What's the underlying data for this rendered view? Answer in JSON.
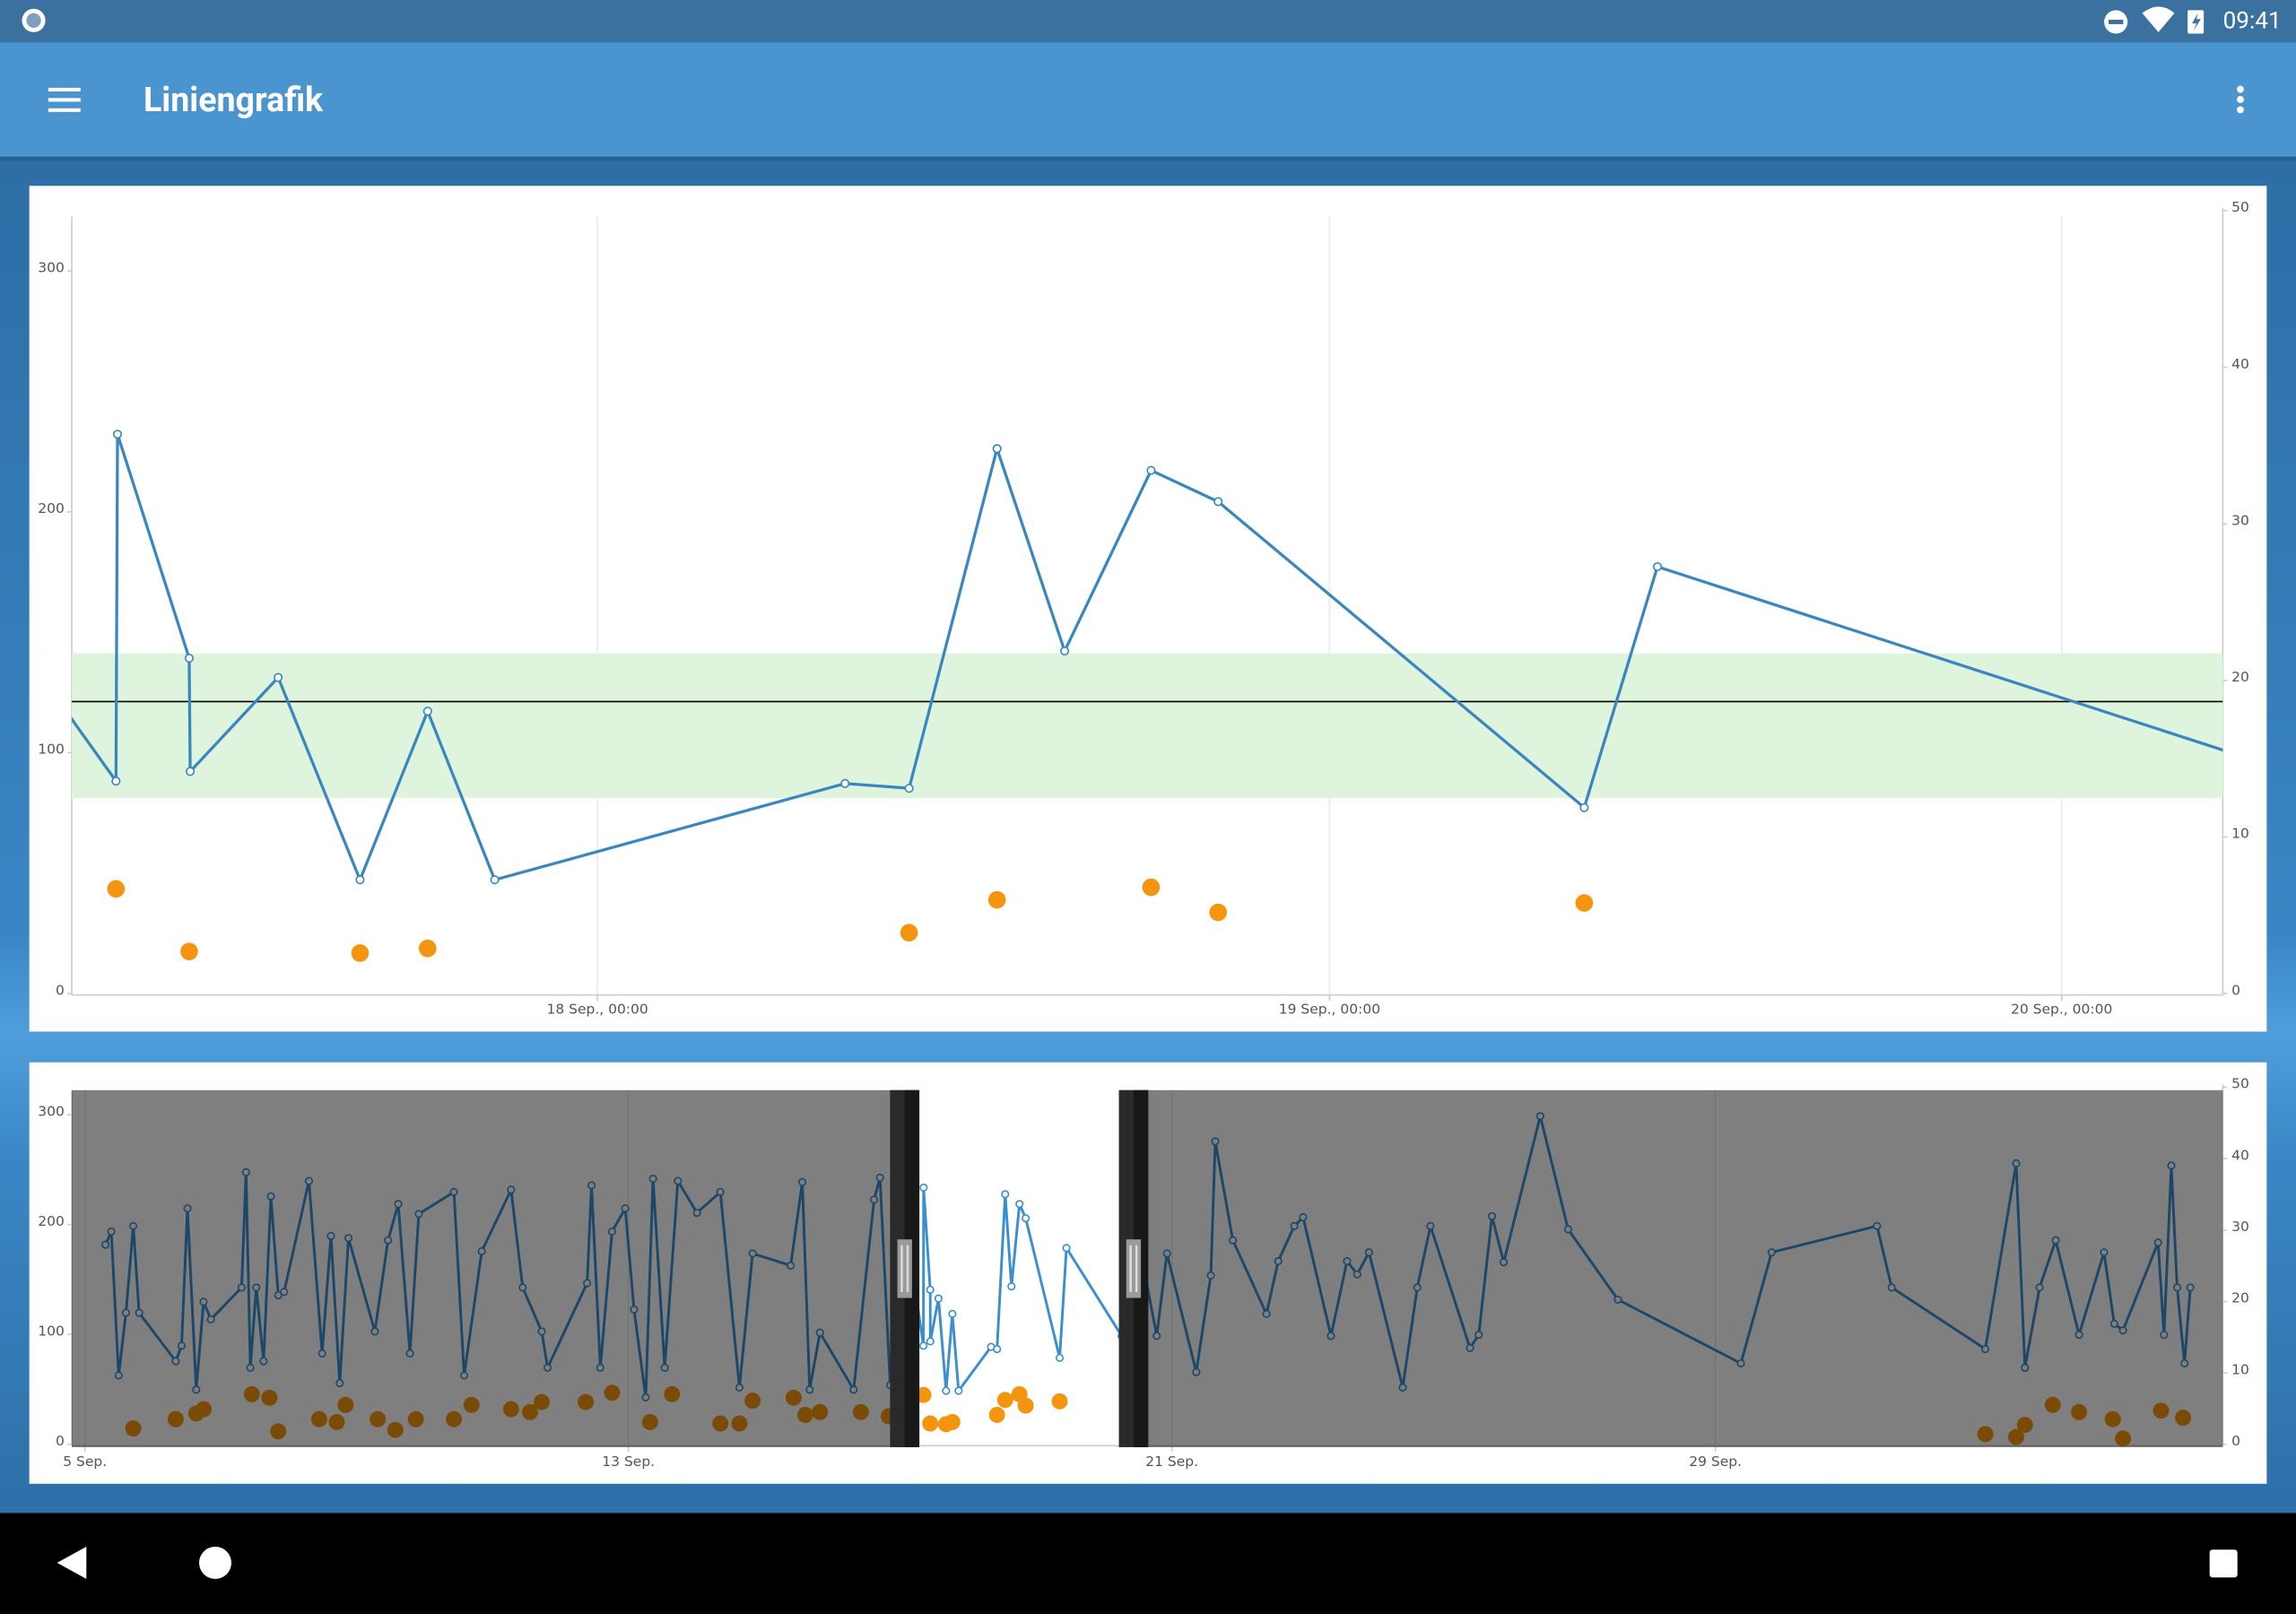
{
  "status_bar": {
    "time": "09:41"
  },
  "app_bar": {
    "title": "Liniengrafik"
  },
  "chart_data": [
    {
      "type": "line",
      "xlim": [
        "17 Sep., 06:46",
        "20 Sep., 05:17"
      ],
      "xticks": [
        "18 Sep., 00:00",
        "19 Sep., 00:00",
        "20 Sep., 00:00"
      ],
      "ylim": [
        0,
        325
      ],
      "yticks": [
        0,
        100,
        200,
        300
      ],
      "y2lim": [
        0,
        50
      ],
      "y2ticks": [
        0,
        10,
        20,
        30,
        40,
        50
      ],
      "grid": "x",
      "band": [
        80,
        140
      ],
      "band_color": "#dff4dc",
      "reference_line": 120,
      "series": [
        {
          "type": "line",
          "color": "#3a87c0",
          "x": [
            "17 Sep., 00:05",
            "17 Sep., 08:13",
            "17 Sep., 08:16",
            "17 Sep., 10:37",
            "17 Sep., 10:39",
            "17 Sep., 13:32",
            "17 Sep., 16:13",
            "17 Sep., 18:26",
            "17 Sep., 20:38",
            "18 Sep., 08:07",
            "18 Sep., 10:13",
            "18 Sep., 13:06",
            "18 Sep., 15:19",
            "18 Sep., 18:09",
            "18 Sep., 20:21",
            "19 Sep., 08:21",
            "19 Sep., 10:45",
            "20 Sep., 06:14"
          ],
          "values": [
            231,
            87,
            231,
            138,
            91,
            130,
            46,
            116,
            46,
            86,
            84,
            225,
            141,
            216,
            203,
            76,
            176,
            96
          ]
        },
        {
          "type": "scatter",
          "axis": "y2",
          "color": "#f5940f",
          "x": [
            "17 Sep., 08:13",
            "17 Sep., 10:37",
            "17 Sep., 16:13",
            "17 Sep., 18:26",
            "18 Sep., 10:13",
            "18 Sep., 13:06",
            "18 Sep., 18:09",
            "18 Sep., 20:21",
            "19 Sep., 08:21"
          ],
          "values": [
            6.5,
            2.5,
            2.4,
            2.7,
            3.7,
            5.8,
            6.6,
            5.0,
            5.6
          ]
        }
      ]
    },
    {
      "type": "navigator",
      "xlim": [
        "4 Sep., 19:20",
        "6 Oct., 11:15"
      ],
      "xticks": [
        "5 Sep.",
        "13 Sep.",
        "21 Sep.",
        "29 Sep."
      ],
      "ylim": [
        0,
        325
      ],
      "yticks": [
        0,
        100,
        200,
        300
      ],
      "y2lim": [
        0,
        50
      ],
      "y2ticks": [
        0,
        10,
        20,
        30,
        40,
        50
      ],
      "grid": "x",
      "series": [
        {
          "type": "line",
          "color": "#3a8fd0",
          "x": [
            "5 Sep., 07:15",
            "5 Sep., 09:19",
            "5 Sep., 11:54",
            "5 Sep., 14:29",
            "5 Sep., 17:04",
            "5 Sep., 19:08",
            "6 Sep., 08:04",
            "6 Sep., 10:08",
            "6 Sep., 12:13",
            "6 Sep., 15:19",
            "6 Sep., 17:54",
            "6 Sep., 20:29",
            "7 Sep., 07:21",
            "7 Sep., 08:54",
            "7 Sep., 10:26",
            "7 Sep., 12:31",
            "7 Sep., 15:06",
            "7 Sep., 17:41",
            "7 Sep., 20:17",
            "7 Sep., 22:21",
            "8 Sep., 07:08",
            "8 Sep., 11:47",
            "8 Sep., 14:54",
            "8 Sep., 18:00",
            "8 Sep., 21:06",
            "9 Sep., 06:25",
            "9 Sep., 11:04",
            "9 Sep., 14:41",
            "9 Sep., 18:49",
            "9 Sep., 21:56",
            "10 Sep., 10:21",
            "10 Sep., 13:58",
            "10 Sep., 20:11",
            "11 Sep., 06:32",
            "11 Sep., 10:39",
            "11 Sep., 17:22",
            "11 Sep., 19:26",
            "12 Sep., 09:24",
            "12 Sep., 10:58",
            "12 Sep., 14:04",
            "12 Sep., 18:13",
            "12 Sep., 22:52",
            "13 Sep., 01:58",
            "13 Sep., 06:06",
            "13 Sep., 08:41",
            "13 Sep., 12:49",
            "13 Sep., 17:28",
            "14 Sep., 00:13",
            "14 Sep., 08:28",
            "14 Sep., 15:13",
            "14 Sep., 19:52",
            "15 Sep., 09:19",
            "15 Sep., 13:26",
            "15 Sep., 16:02",
            "15 Sep., 19:39",
            "16 Sep., 07:34",
            "16 Sep., 14:47",
            "16 Sep., 16:52",
            "16 Sep., 20:28",
            "17 Sep., 00:05",
            "17 Sep., 08:13",
            "17 Sep., 08:16",
            "17 Sep., 10:37",
            "17 Sep., 10:39",
            "17 Sep., 13:32",
            "17 Sep., 16:13",
            "17 Sep., 18:26",
            "17 Sep., 20:38",
            "18 Sep., 08:07",
            "18 Sep., 10:13",
            "18 Sep., 13:06",
            "18 Sep., 15:19",
            "18 Sep., 18:09",
            "18 Sep., 20:21",
            "19 Sep., 08:21",
            "19 Sep., 10:45",
            "20 Sep., 06:14",
            "20 Sep., 12:56",
            "20 Sep., 18:38",
            "20 Sep., 22:15",
            "21 Sep., 08:36",
            "21 Sep., 13:45",
            "21 Sep., 15:19",
            "21 Sep., 21:32",
            "22 Sep., 09:24",
            "22 Sep., 13:33",
            "22 Sep., 19:14",
            "22 Sep., 22:21",
            "23 Sep., 08:11",
            "23 Sep., 13:52",
            "23 Sep., 17:28",
            "23 Sep., 21:37",
            "24 Sep., 09:32",
            "24 Sep., 14:41",
            "24 Sep., 19:20",
            "25 Sep., 09:19",
            "25 Sep., 12:24",
            "25 Sep., 17:04",
            "25 Sep., 21:13",
            "26 Sep., 10:08",
            "26 Sep., 19:58",
            "27 Sep., 13:33",
            "29 Sep., 09:00",
            "29 Sep., 19:52",
            "1 Oct., 09:06",
            "1 Oct., 14:17",
            "2 Oct., 23:22",
            "3 Oct., 10:15",
            "3 Oct., 13:21",
            "3 Oct., 18:32",
            "4 Oct., 00:13",
            "4 Oct., 08:28",
            "4 Oct., 17:17",
            "4 Oct., 20:54",
            "5 Oct., 00:00",
            "5 Oct., 12:24",
            "5 Oct., 14:29",
            "5 Oct., 17:04",
            "5 Oct., 19:08",
            "5 Oct., 21:43",
            "5 Oct., 23:47"
          ],
          "values": [
            179,
            191,
            60,
            117,
            196,
            117,
            73,
            87,
            212,
            47,
            127,
            111,
            140,
            245,
            67,
            140,
            73,
            223,
            133,
            136,
            237,
            80,
            187,
            53,
            185,
            100,
            183,
            216,
            80,
            207,
            227,
            60,
            173,
            229,
            140,
            100,
            67,
            144,
            233,
            67,
            191,
            212,
            120,
            40,
            239,
            67,
            237,
            208,
            227,
            49,
            171,
            160,
            236,
            47,
            99,
            47,
            220,
            240,
            51,
            231,
            87,
            231,
            138,
            91,
            130,
            46,
            116,
            46,
            86,
            84,
            225,
            141,
            216,
            203,
            76,
            176,
            96,
            173,
            96,
            171,
            63,
            151,
            273,
            183,
            116,
            164,
            196,
            204,
            96,
            164,
            152,
            172,
            49,
            140,
            196,
            85,
            97,
            205,
            163,
            296,
            193,
            129,
            71,
            172,
            196,
            140,
            84,
            253,
            67,
            140,
            183,
            97,
            172,
            107,
            101,
            181,
            97,
            251,
            140,
            71,
            140
          ]
        },
        {
          "type": "scatter",
          "axis": "y2",
          "color": "#f5940f",
          "x": [
            "5 Sep., 17:04",
            "6 Sep., 08:04",
            "6 Sep., 15:19",
            "6 Sep., 17:54",
            "7 Sep., 10:58",
            "7 Sep., 17:11",
            "7 Sep., 20:17",
            "8 Sep., 10:45",
            "8 Sep., 16:58",
            "8 Sep., 20:04",
            "9 Sep., 07:26",
            "9 Sep., 13:39",
            "9 Sep., 20:54",
            "10 Sep., 10:21",
            "10 Sep., 16:34",
            "11 Sep., 06:32",
            "11 Sep., 13:15",
            "11 Sep., 17:22",
            "12 Sep., 08:54",
            "12 Sep., 18:13",
            "13 Sep., 07:39",
            "13 Sep., 15:24",
            "14 Sep., 08:28",
            "14 Sep., 15:13",
            "14 Sep., 19:52",
            "15 Sep., 10:21",
            "15 Sep., 14:29",
            "15 Sep., 19:39",
            "16 Sep., 10:08",
            "16 Sep., 19:58",
            "17 Sep., 08:13",
            "17 Sep., 10:37",
            "17 Sep., 16:13",
            "17 Sep., 18:26",
            "18 Sep., 10:13",
            "18 Sep., 13:06",
            "18 Sep., 18:09",
            "18 Sep., 20:21",
            "19 Sep., 08:21",
            "2 Oct., 23:22",
            "3 Oct., 10:15",
            "3 Oct., 13:21",
            "3 Oct., 23:11",
            "4 Oct., 08:28",
            "4 Oct., 20:23",
            "5 Oct., 00:00",
            "5 Oct., 13:26",
            "5 Oct., 21:13"
          ],
          "values": [
            1.8,
            3.1,
            3.9,
            4.5,
            6.6,
            6.1,
            1.4,
            3.1,
            2.7,
            5.1,
            3.1,
            1.6,
            3.1,
            3.1,
            5.1,
            4.5,
            4.1,
            5.5,
            5.5,
            6.8,
            2.7,
            6.6,
            2.5,
            2.5,
            5.7,
            6.1,
            3.7,
            4.1,
            4.1,
            3.5,
            6.5,
            2.5,
            2.4,
            2.7,
            3.7,
            5.8,
            6.6,
            5.0,
            5.6,
            1.0,
            0.6,
            2.3,
            5.1,
            4.1,
            3.1,
            0.4,
            4.3,
            3.3
          ]
        }
      ]
    }
  ]
}
